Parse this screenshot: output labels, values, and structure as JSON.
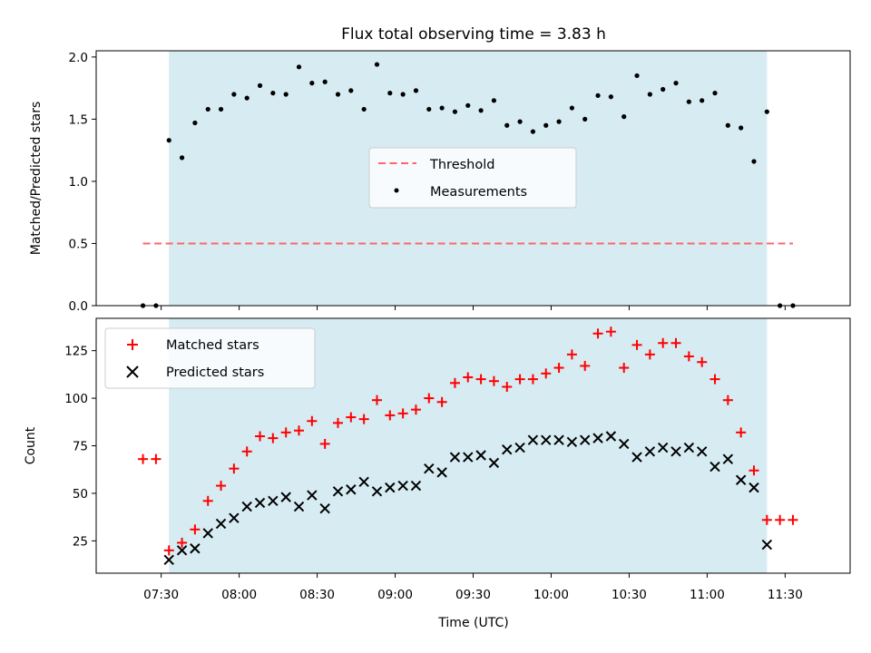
{
  "chart_data": [
    {
      "type": "scatter",
      "title": "Flux total observing time = 3.83 h",
      "xlabel": "",
      "ylabel": "Matched/Predicted stars",
      "xlim": [
        "07:05",
        "11:55"
      ],
      "ylim": [
        0,
        2.05
      ],
      "yticks": [
        0,
        0.5,
        1.0,
        1.5,
        2.0
      ],
      "ytick_labels": [
        "0.0",
        "0.5",
        "1.0",
        "1.5",
        "2.0"
      ],
      "grid": false,
      "legend_position": "center",
      "observing_window": [
        "07:33",
        "11:23"
      ],
      "observing_window_color": "#add8e6",
      "threshold": {
        "name": "Threshold",
        "y": 0.5,
        "x_range": [
          "07:23",
          "11:33"
        ],
        "color": "#ff6666",
        "style": "dashed"
      },
      "series": [
        {
          "name": "Measurements",
          "marker": "dot",
          "color": "#000000",
          "x": [
            "07:23",
            "07:28",
            "07:33",
            "07:38",
            "07:43",
            "07:48",
            "07:53",
            "07:58",
            "08:03",
            "08:08",
            "08:13",
            "08:18",
            "08:23",
            "08:28",
            "08:33",
            "08:38",
            "08:43",
            "08:48",
            "08:53",
            "08:58",
            "09:03",
            "09:08",
            "09:13",
            "09:18",
            "09:23",
            "09:28",
            "09:33",
            "09:38",
            "09:43",
            "09:48",
            "09:53",
            "09:58",
            "10:03",
            "10:08",
            "10:13",
            "10:18",
            "10:23",
            "10:28",
            "10:33",
            "10:38",
            "10:43",
            "10:48",
            "10:53",
            "10:58",
            "11:03",
            "11:08",
            "11:13",
            "11:18",
            "11:23",
            "11:28",
            "11:33"
          ],
          "y": [
            0.0,
            0.0,
            1.33,
            1.19,
            1.47,
            1.58,
            1.58,
            1.7,
            1.67,
            1.77,
            1.71,
            1.7,
            1.92,
            1.79,
            1.8,
            1.7,
            1.73,
            1.58,
            1.94,
            1.71,
            1.7,
            1.73,
            1.58,
            1.59,
            1.56,
            1.61,
            1.57,
            1.65,
            1.45,
            1.48,
            1.4,
            1.45,
            1.48,
            1.59,
            1.5,
            1.69,
            1.68,
            1.52,
            1.85,
            1.7,
            1.74,
            1.79,
            1.64,
            1.65,
            1.71,
            1.45,
            1.43,
            1.16,
            1.56,
            0.0,
            0.0
          ]
        }
      ]
    },
    {
      "type": "scatter",
      "title": "",
      "xlabel": "Time (UTC)",
      "ylabel": "Count",
      "xlim": [
        "07:05",
        "11:55"
      ],
      "ylim": [
        8,
        142
      ],
      "yticks": [
        25,
        50,
        75,
        100,
        125
      ],
      "ytick_labels": [
        "25",
        "50",
        "75",
        "100",
        "125"
      ],
      "xticks": [
        "07:30",
        "08:00",
        "08:30",
        "09:00",
        "09:30",
        "10:00",
        "10:30",
        "11:00",
        "11:30"
      ],
      "grid": false,
      "legend_position": "upper left",
      "observing_window": [
        "07:33",
        "11:23"
      ],
      "observing_window_color": "#add8e6",
      "series": [
        {
          "name": "Matched stars",
          "marker": "plus",
          "color": "#ff0000",
          "x": [
            "07:23",
            "07:28",
            "07:33",
            "07:38",
            "07:43",
            "07:48",
            "07:53",
            "07:58",
            "08:03",
            "08:08",
            "08:13",
            "08:18",
            "08:23",
            "08:28",
            "08:33",
            "08:38",
            "08:43",
            "08:48",
            "08:53",
            "08:58",
            "09:03",
            "09:08",
            "09:13",
            "09:18",
            "09:23",
            "09:28",
            "09:33",
            "09:38",
            "09:43",
            "09:48",
            "09:53",
            "09:58",
            "10:03",
            "10:08",
            "10:13",
            "10:18",
            "10:23",
            "10:28",
            "10:33",
            "10:38",
            "10:43",
            "10:48",
            "10:53",
            "10:58",
            "11:03",
            "11:08",
            "11:13",
            "11:18",
            "11:23",
            "11:28",
            "11:33"
          ],
          "y": [
            68,
            68,
            20,
            24,
            31,
            46,
            54,
            63,
            72,
            80,
            79,
            82,
            83,
            88,
            76,
            87,
            90,
            89,
            99,
            91,
            92,
            94,
            100,
            98,
            108,
            111,
            110,
            109,
            106,
            110,
            110,
            113,
            116,
            123,
            117,
            134,
            135,
            116,
            128,
            123,
            129,
            129,
            122,
            119,
            110,
            99,
            82,
            62,
            36,
            36,
            36
          ]
        },
        {
          "name": "Predicted stars",
          "marker": "x",
          "color": "#000000",
          "x": [
            "07:33",
            "07:38",
            "07:43",
            "07:48",
            "07:53",
            "07:58",
            "08:03",
            "08:08",
            "08:13",
            "08:18",
            "08:23",
            "08:28",
            "08:33",
            "08:38",
            "08:43",
            "08:48",
            "08:53",
            "08:58",
            "09:03",
            "09:08",
            "09:13",
            "09:18",
            "09:23",
            "09:28",
            "09:33",
            "09:38",
            "09:43",
            "09:48",
            "09:53",
            "09:58",
            "10:03",
            "10:08",
            "10:13",
            "10:18",
            "10:23",
            "10:28",
            "10:33",
            "10:38",
            "10:43",
            "10:48",
            "10:53",
            "10:58",
            "11:03",
            "11:08",
            "11:13",
            "11:18",
            "11:23"
          ],
          "y": [
            15,
            20,
            21,
            29,
            34,
            37,
            43,
            45,
            46,
            48,
            43,
            49,
            42,
            51,
            52,
            56,
            51,
            53,
            54,
            54,
            63,
            61,
            69,
            69,
            70,
            66,
            73,
            74,
            78,
            78,
            78,
            77,
            78,
            79,
            80,
            76,
            69,
            72,
            74,
            72,
            74,
            72,
            64,
            68,
            57,
            53,
            23
          ]
        }
      ]
    }
  ]
}
